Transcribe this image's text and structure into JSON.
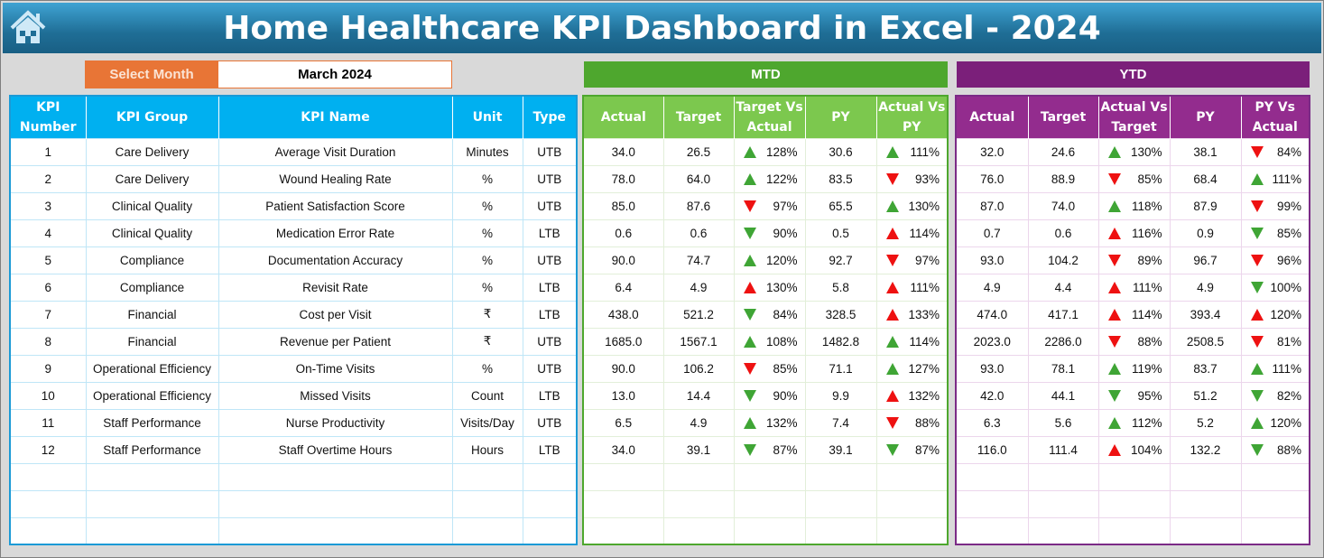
{
  "title": "Home Healthcare KPI Dashboard in Excel - 2024",
  "month_selector": {
    "label": "Select Month",
    "value": "March 2024"
  },
  "sections": {
    "mtd": "MTD",
    "ytd": "YTD"
  },
  "colors": {
    "green": "#3fa535",
    "red": "#ee1111",
    "title_bar": "#1f6e96",
    "mtd": "#4ea72e",
    "ytd": "#7b1f7a",
    "left": "#00b0f0",
    "month": "#e87536"
  },
  "left_headers": [
    "KPI Number",
    "KPI Group",
    "KPI Name",
    "Unit",
    "Type"
  ],
  "mtd_headers": [
    "Actual",
    "Target",
    "Target Vs Actual",
    "PY",
    "Actual Vs PY"
  ],
  "ytd_headers": [
    "Actual",
    "Target",
    "Actual Vs Target",
    "PY",
    "PY Vs Actual"
  ],
  "rows": [
    {
      "num": "1",
      "group": "Care Delivery",
      "name": "Average Visit Duration",
      "unit": "Minutes",
      "type": "UTB",
      "mtd": {
        "actual": "34.0",
        "target": "26.5",
        "tva": {
          "icon": "up",
          "color": "green",
          "value": "128%"
        },
        "py": "30.6",
        "avp": {
          "icon": "up",
          "color": "green",
          "value": "111%"
        }
      },
      "ytd": {
        "actual": "32.0",
        "target": "24.6",
        "avt": {
          "icon": "up",
          "color": "green",
          "value": "130%"
        },
        "py": "38.1",
        "pva": {
          "icon": "down",
          "color": "red",
          "value": "84%"
        }
      }
    },
    {
      "num": "2",
      "group": "Care Delivery",
      "name": "Wound Healing Rate",
      "unit": "%",
      "type": "UTB",
      "mtd": {
        "actual": "78.0",
        "target": "64.0",
        "tva": {
          "icon": "up",
          "color": "green",
          "value": "122%"
        },
        "py": "83.5",
        "avp": {
          "icon": "down",
          "color": "red",
          "value": "93%"
        }
      },
      "ytd": {
        "actual": "76.0",
        "target": "88.9",
        "avt": {
          "icon": "down",
          "color": "red",
          "value": "85%"
        },
        "py": "68.4",
        "pva": {
          "icon": "up",
          "color": "green",
          "value": "111%"
        }
      }
    },
    {
      "num": "3",
      "group": "Clinical Quality",
      "name": "Patient Satisfaction Score",
      "unit": "%",
      "type": "UTB",
      "mtd": {
        "actual": "85.0",
        "target": "87.6",
        "tva": {
          "icon": "down",
          "color": "red",
          "value": "97%"
        },
        "py": "65.5",
        "avp": {
          "icon": "up",
          "color": "green",
          "value": "130%"
        }
      },
      "ytd": {
        "actual": "87.0",
        "target": "74.0",
        "avt": {
          "icon": "up",
          "color": "green",
          "value": "118%"
        },
        "py": "87.9",
        "pva": {
          "icon": "down",
          "color": "red",
          "value": "99%"
        }
      }
    },
    {
      "num": "4",
      "group": "Clinical Quality",
      "name": "Medication Error Rate",
      "unit": "%",
      "type": "LTB",
      "mtd": {
        "actual": "0.6",
        "target": "0.6",
        "tva": {
          "icon": "down",
          "color": "green",
          "value": "90%"
        },
        "py": "0.5",
        "avp": {
          "icon": "up",
          "color": "red",
          "value": "114%"
        }
      },
      "ytd": {
        "actual": "0.7",
        "target": "0.6",
        "avt": {
          "icon": "up",
          "color": "red",
          "value": "116%"
        },
        "py": "0.9",
        "pva": {
          "icon": "down",
          "color": "green",
          "value": "85%"
        }
      }
    },
    {
      "num": "5",
      "group": "Compliance",
      "name": "Documentation Accuracy",
      "unit": "%",
      "type": "UTB",
      "mtd": {
        "actual": "90.0",
        "target": "74.7",
        "tva": {
          "icon": "up",
          "color": "green",
          "value": "120%"
        },
        "py": "92.7",
        "avp": {
          "icon": "down",
          "color": "red",
          "value": "97%"
        }
      },
      "ytd": {
        "actual": "93.0",
        "target": "104.2",
        "avt": {
          "icon": "down",
          "color": "red",
          "value": "89%"
        },
        "py": "96.7",
        "pva": {
          "icon": "down",
          "color": "red",
          "value": "96%"
        }
      }
    },
    {
      "num": "6",
      "group": "Compliance",
      "name": "Revisit Rate",
      "unit": "%",
      "type": "LTB",
      "mtd": {
        "actual": "6.4",
        "target": "4.9",
        "tva": {
          "icon": "up",
          "color": "red",
          "value": "130%"
        },
        "py": "5.8",
        "avp": {
          "icon": "up",
          "color": "red",
          "value": "111%"
        }
      },
      "ytd": {
        "actual": "4.9",
        "target": "4.4",
        "avt": {
          "icon": "up",
          "color": "red",
          "value": "111%"
        },
        "py": "4.9",
        "pva": {
          "icon": "down",
          "color": "green",
          "value": "100%"
        }
      }
    },
    {
      "num": "7",
      "group": "Financial",
      "name": "Cost per Visit",
      "unit": "₹",
      "type": "LTB",
      "mtd": {
        "actual": "438.0",
        "target": "521.2",
        "tva": {
          "icon": "down",
          "color": "green",
          "value": "84%"
        },
        "py": "328.5",
        "avp": {
          "icon": "up",
          "color": "red",
          "value": "133%"
        }
      },
      "ytd": {
        "actual": "474.0",
        "target": "417.1",
        "avt": {
          "icon": "up",
          "color": "red",
          "value": "114%"
        },
        "py": "393.4",
        "pva": {
          "icon": "up",
          "color": "red",
          "value": "120%"
        }
      }
    },
    {
      "num": "8",
      "group": "Financial",
      "name": "Revenue per Patient",
      "unit": "₹",
      "type": "UTB",
      "mtd": {
        "actual": "1685.0",
        "target": "1567.1",
        "tva": {
          "icon": "up",
          "color": "green",
          "value": "108%"
        },
        "py": "1482.8",
        "avp": {
          "icon": "up",
          "color": "green",
          "value": "114%"
        }
      },
      "ytd": {
        "actual": "2023.0",
        "target": "2286.0",
        "avt": {
          "icon": "down",
          "color": "red",
          "value": "88%"
        },
        "py": "2508.5",
        "pva": {
          "icon": "down",
          "color": "red",
          "value": "81%"
        }
      }
    },
    {
      "num": "9",
      "group": "Operational Efficiency",
      "name": "On-Time Visits",
      "unit": "%",
      "type": "UTB",
      "mtd": {
        "actual": "90.0",
        "target": "106.2",
        "tva": {
          "icon": "down",
          "color": "red",
          "value": "85%"
        },
        "py": "71.1",
        "avp": {
          "icon": "up",
          "color": "green",
          "value": "127%"
        }
      },
      "ytd": {
        "actual": "93.0",
        "target": "78.1",
        "avt": {
          "icon": "up",
          "color": "green",
          "value": "119%"
        },
        "py": "83.7",
        "pva": {
          "icon": "up",
          "color": "green",
          "value": "111%"
        }
      }
    },
    {
      "num": "10",
      "group": "Operational Efficiency",
      "name": "Missed Visits",
      "unit": "Count",
      "type": "LTB",
      "mtd": {
        "actual": "13.0",
        "target": "14.4",
        "tva": {
          "icon": "down",
          "color": "green",
          "value": "90%"
        },
        "py": "9.9",
        "avp": {
          "icon": "up",
          "color": "red",
          "value": "132%"
        }
      },
      "ytd": {
        "actual": "42.0",
        "target": "44.1",
        "avt": {
          "icon": "down",
          "color": "green",
          "value": "95%"
        },
        "py": "51.2",
        "pva": {
          "icon": "down",
          "color": "green",
          "value": "82%"
        }
      }
    },
    {
      "num": "11",
      "group": "Staff Performance",
      "name": "Nurse Productivity",
      "unit": "Visits/Day",
      "type": "UTB",
      "mtd": {
        "actual": "6.5",
        "target": "4.9",
        "tva": {
          "icon": "up",
          "color": "green",
          "value": "132%"
        },
        "py": "7.4",
        "avp": {
          "icon": "down",
          "color": "red",
          "value": "88%"
        }
      },
      "ytd": {
        "actual": "6.3",
        "target": "5.6",
        "avt": {
          "icon": "up",
          "color": "green",
          "value": "112%"
        },
        "py": "5.2",
        "pva": {
          "icon": "up",
          "color": "green",
          "value": "120%"
        }
      }
    },
    {
      "num": "12",
      "group": "Staff Performance",
      "name": "Staff Overtime Hours",
      "unit": "Hours",
      "type": "LTB",
      "mtd": {
        "actual": "34.0",
        "target": "39.1",
        "tva": {
          "icon": "down",
          "color": "green",
          "value": "87%"
        },
        "py": "39.1",
        "avp": {
          "icon": "down",
          "color": "green",
          "value": "87%"
        }
      },
      "ytd": {
        "actual": "116.0",
        "target": "111.4",
        "avt": {
          "icon": "up",
          "color": "red",
          "value": "104%"
        },
        "py": "132.2",
        "pva": {
          "icon": "down",
          "color": "green",
          "value": "88%"
        }
      }
    }
  ]
}
